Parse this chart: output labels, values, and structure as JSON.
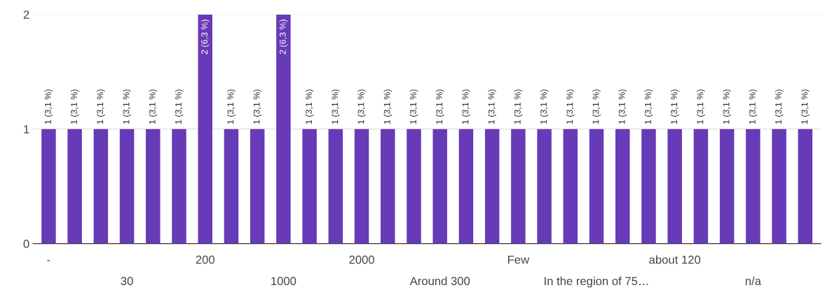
{
  "chart_data": {
    "type": "bar",
    "categories": [
      "-",
      null,
      null,
      "30",
      null,
      null,
      "200",
      null,
      null,
      "1000",
      null,
      null,
      "2000",
      null,
      null,
      "Around 300",
      null,
      null,
      "Few",
      null,
      null,
      "In the region of 75…",
      null,
      null,
      "about 120",
      null,
      null,
      "n/a",
      null,
      null
    ],
    "values": [
      1,
      1,
      1,
      1,
      1,
      1,
      2,
      1,
      1,
      2,
      1,
      1,
      1,
      1,
      1,
      1,
      1,
      1,
      1,
      1,
      1,
      1,
      1,
      1,
      1,
      1,
      1,
      1,
      1,
      1
    ],
    "value_labels": [
      "1 (3,1 %)",
      "1 (3,1 %)",
      "1 (3,1 %)",
      "1 (3,1 %)",
      "1 (3,1 %)",
      "1 (3,1 %)",
      "2 (6,3 %)",
      "1 (3,1 %)",
      "1 (3,1 %)",
      "2 (6,3 %)",
      "1 (3,1 %)",
      "1 (3,1 %)",
      "1 (3,1 %)",
      "1 (3,1 %)",
      "1 (3,1 %)",
      "1 (3,1 %)",
      "1 (3,1 %)",
      "1 (3,1 %)",
      "1 (3,1 %)",
      "1 (3,1 %)",
      "1 (3,1 %)",
      "1 (3,1 %)",
      "1 (3,1 %)",
      "1 (3,1 %)",
      "1 (3,1 %)",
      "1 (3,1 %)",
      "1 (3,1 %)",
      "1 (3,1 %)",
      "1 (3,1 %)",
      "1 (3,1 %)"
    ],
    "color": "#673ab7",
    "ylim": [
      0,
      2
    ],
    "yticks": [
      0,
      1,
      2
    ],
    "grid": "y",
    "legend": false
  }
}
